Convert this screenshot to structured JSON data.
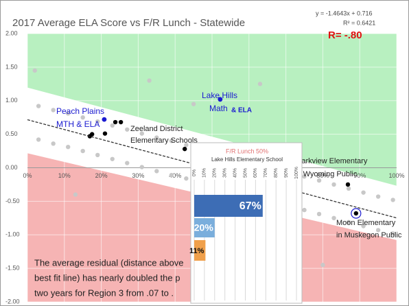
{
  "chart_data": [
    {
      "type": "scatter",
      "title": "2017 Average ELA Score vs F/R Lunch - Statewide",
      "trendline": {
        "label": "y = -1.4643x + 0.716",
        "slope": -1.4643,
        "intercept": 0.716
      },
      "r_squared_label": "R² = 0.6421",
      "r_label": "R= -.80",
      "xlim": [
        0,
        1
      ],
      "ylim": [
        -2,
        2
      ],
      "xticks": [
        {
          "value": 0,
          "label": "0%"
        },
        {
          "value": 0.1,
          "label": "10%"
        },
        {
          "value": 0.2,
          "label": "20%"
        },
        {
          "value": 0.3,
          "label": "30%"
        },
        {
          "value": 0.4,
          "label": "40%"
        },
        {
          "value": 0.5,
          "label": "50%"
        },
        {
          "value": 0.6,
          "label": "60%"
        },
        {
          "value": 0.7,
          "label": "70%"
        },
        {
          "value": 0.8,
          "label": "80%"
        },
        {
          "value": 0.9,
          "label": "90%"
        },
        {
          "value": 1,
          "label": "100%"
        }
      ],
      "yticks": [
        {
          "value": 2,
          "label": "2.00"
        },
        {
          "value": 1.5,
          "label": "1.50"
        },
        {
          "value": 1,
          "label": "1.00"
        },
        {
          "value": 0.5,
          "label": "0.50"
        },
        {
          "value": 0,
          "label": "0.00"
        },
        {
          "value": -0.5,
          "label": "-0.50"
        },
        {
          "value": -1,
          "label": "-1.00"
        },
        {
          "value": -1.5,
          "label": "-1.50"
        },
        {
          "value": -2,
          "label": "-2.00"
        }
      ],
      "grid": true,
      "series": [
        {
          "color": "#c8c8c8",
          "x": [
            0.03,
            0.03,
            0.07,
            0.07,
            0.11,
            0.11,
            0.15,
            0.15,
            0.19,
            0.19,
            0.23,
            0.23,
            0.27,
            0.27,
            0.31,
            0.31,
            0.35,
            0.35,
            0.39,
            0.39,
            0.43,
            0.43,
            0.47,
            0.47,
            0.51,
            0.51,
            0.55,
            0.55,
            0.59,
            0.59,
            0.63,
            0.63,
            0.67,
            0.67,
            0.71,
            0.71,
            0.75,
            0.75,
            0.79,
            0.79,
            0.83,
            0.83,
            0.87,
            0.87,
            0.91,
            0.91,
            0.95,
            0.95,
            0.99,
            0.99,
            0.02,
            0.33,
            0.63,
            0.13,
            0.8,
            0.45
          ],
          "values": [
            0.92,
            0.42,
            0.86,
            0.36,
            0.81,
            0.31,
            0.75,
            0.25,
            0.69,
            0.19,
            0.63,
            0.13,
            0.57,
            0.07,
            0.51,
            0.01,
            0.45,
            -0.05,
            0.4,
            -0.11,
            0.34,
            -0.16,
            0.28,
            -0.22,
            0.22,
            -0.28,
            0.16,
            -0.34,
            0.1,
            -0.4,
            0.04,
            -0.46,
            -0.02,
            -0.52,
            -0.07,
            -0.57,
            -0.13,
            -0.63,
            -0.19,
            -0.69,
            -0.25,
            -0.75,
            -0.31,
            -0.81,
            -0.37,
            -0.87,
            -0.43,
            -0.93,
            -0.48,
            -0.98,
            1.45,
            1.3,
            1.25,
            -0.4,
            -1.45,
            0.95
          ]
        },
        {
          "color": "#000000",
          "x": [
            0.238,
            0.253,
            0.21,
            0.175,
            0.169,
            0.426,
            0.868,
            0.89
          ],
          "values": [
            0.68,
            0.68,
            0.51,
            0.5,
            0.47,
            0.28,
            -0.25,
            -0.68
          ]
        },
        {
          "color": "#1a1ad0",
          "x": [
            0.208,
            0.522
          ],
          "values": [
            0.72,
            1.02
          ]
        }
      ],
      "annotations": [
        "Peach Plains",
        "MTH & ELA",
        "Lake Hills",
        "Math",
        "& ELA",
        "Zeeland District",
        "Elementary Schools",
        "Parkview Elementary",
        "in Wyoming Public",
        "Moon Elementary",
        "in Muskegon Public",
        "The average residual (distance above",
        "best fit line) has nearly doubled the p",
        "two years for Region 3 from .07 to ."
      ]
    },
    {
      "type": "bar",
      "orientation": "horizontal",
      "title": "F/R Lunch 50%",
      "subtitle": "Lake Hills Elementary School",
      "categories": [
        null,
        null,
        null
      ],
      "values": [
        67,
        20,
        11
      ],
      "value_labels": [
        "67%",
        "20%",
        "11%"
      ],
      "colors": [
        "#3d6db5",
        "#7aaedc",
        "#f0a04b"
      ],
      "xlim": [
        0,
        100
      ],
      "xticks": [
        {
          "value": 0,
          "label": "0%"
        },
        {
          "value": 10,
          "label": "10%"
        },
        {
          "value": 20,
          "label": "20%"
        },
        {
          "value": 30,
          "label": "30%"
        },
        {
          "value": 40,
          "label": "40%"
        },
        {
          "value": 50,
          "label": "50%"
        },
        {
          "value": 60,
          "label": "60%"
        },
        {
          "value": 70,
          "label": "70%"
        },
        {
          "value": 80,
          "label": "80%"
        },
        {
          "value": 90,
          "label": "90%"
        },
        {
          "value": 100,
          "label": "100%"
        }
      ],
      "grid": true
    }
  ]
}
